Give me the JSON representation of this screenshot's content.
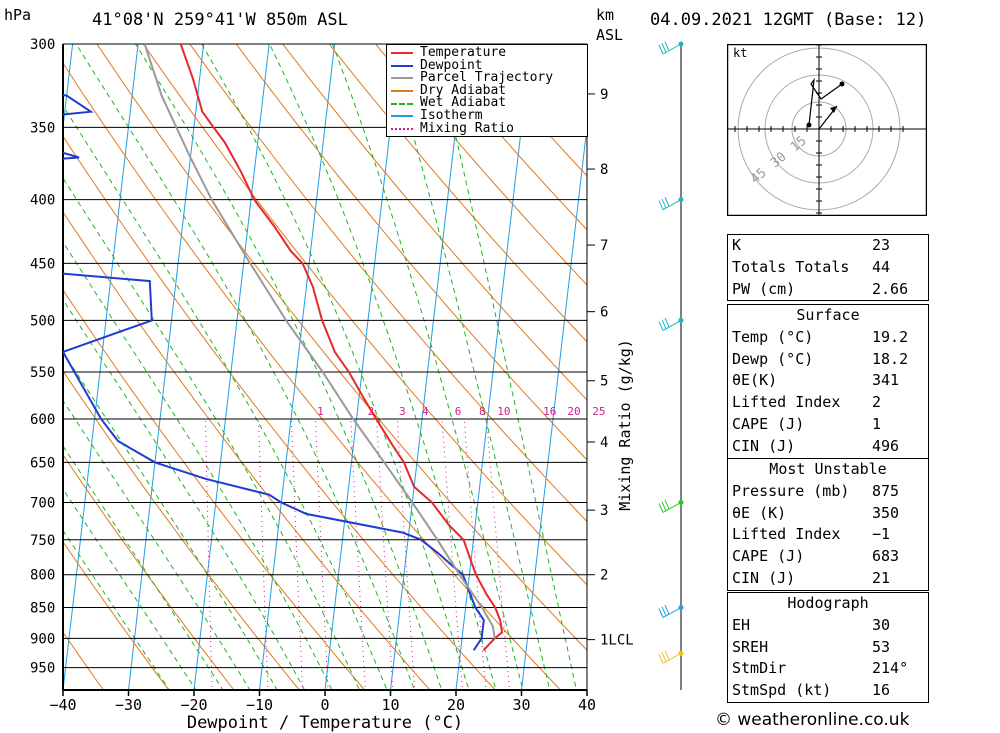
{
  "header": {
    "location": "41°08'N  259°41'W  850m  ASL",
    "datetime": "04.09.2021  12GMT  (Base: 12)",
    "pressure_unit": "hPa",
    "height_unit_line1": "km",
    "height_unit_line2": "ASL"
  },
  "footer": "© weatheronline.co.uk",
  "colors": {
    "temperature": "#e8282b",
    "dewpoint": "#1e3cd2",
    "parcel": "#9a9a9a",
    "dry_adiabat": "#e07a1e",
    "wet_adiabat": "#1fb41f",
    "isotherm": "#1e9ee8",
    "mixing_ratio": "#d01e8c",
    "wind": "#1ab6c6"
  },
  "legend": [
    {
      "key": "temperature",
      "label": "Temperature",
      "style": "solid"
    },
    {
      "key": "dewpoint",
      "label": "Dewpoint",
      "style": "solid"
    },
    {
      "key": "parcel",
      "label": "Parcel Trajectory",
      "style": "solid"
    },
    {
      "key": "dry_adiabat",
      "label": "Dry Adiabat",
      "style": "solid"
    },
    {
      "key": "wet_adiabat",
      "label": "Wet Adiabat",
      "style": "dashed"
    },
    {
      "key": "isotherm",
      "label": "Isotherm",
      "style": "solid"
    },
    {
      "key": "mixing_ratio",
      "label": "Mixing Ratio",
      "style": "dotted"
    }
  ],
  "chart_data": {
    "type": "line",
    "xlabel": "Dewpoint / Temperature (°C)",
    "xlim": [
      -40,
      40
    ],
    "x_ticks": [
      -40,
      -30,
      -20,
      -10,
      0,
      10,
      20,
      30,
      40
    ],
    "x_tick_labels": [
      "−40",
      "−30",
      "−20",
      "−10",
      "0",
      "10",
      "20",
      "30",
      "40"
    ],
    "pressure_levels": [
      300,
      350,
      400,
      450,
      500,
      550,
      600,
      650,
      700,
      750,
      800,
      850,
      900,
      950
    ],
    "height_ticks": [
      {
        "label": "9",
        "p": 329
      },
      {
        "label": "8",
        "p": 378
      },
      {
        "label": "7",
        "p": 435
      },
      {
        "label": "6",
        "p": 492
      },
      {
        "label": "5",
        "p": 559
      },
      {
        "label": "4",
        "p": 626
      },
      {
        "label": "3",
        "p": 710
      },
      {
        "label": "2",
        "p": 800
      },
      {
        "label": "1LCL",
        "p": 902
      }
    ],
    "mixing_ratio_axis_label": "Mixing Ratio (g/kg)",
    "mixing_ratio_labels": [
      {
        "label": "1",
        "t": -5.5
      },
      {
        "label": "2",
        "t": 2.2
      },
      {
        "label": "3",
        "t": 7.0
      },
      {
        "label": "4",
        "t": 10.5
      },
      {
        "label": "6",
        "t": 15.5
      },
      {
        "label": "8",
        "t": 19.2
      },
      {
        "label": "10",
        "t": 22.5
      },
      {
        "label": "16",
        "t": 29.5
      },
      {
        "label": "20",
        "t": 33.2
      },
      {
        "label": "25",
        "t": 37.0
      }
    ],
    "series": [
      {
        "name": "Temperature",
        "key": "temperature",
        "points": [
          [
            300,
            -33.5
          ],
          [
            320,
            -31
          ],
          [
            340,
            -29
          ],
          [
            350,
            -27
          ],
          [
            360,
            -25
          ],
          [
            380,
            -22
          ],
          [
            400,
            -19.5
          ],
          [
            420,
            -16
          ],
          [
            440,
            -13
          ],
          [
            450,
            -11
          ],
          [
            470,
            -9
          ],
          [
            500,
            -7
          ],
          [
            530,
            -4.5
          ],
          [
            550,
            -2
          ],
          [
            580,
            1
          ],
          [
            600,
            3
          ],
          [
            630,
            6
          ],
          [
            650,
            8
          ],
          [
            680,
            10
          ],
          [
            700,
            13
          ],
          [
            730,
            16
          ],
          [
            750,
            18.5
          ],
          [
            780,
            20
          ],
          [
            800,
            21
          ],
          [
            830,
            23
          ],
          [
            850,
            24.5
          ],
          [
            870,
            25.5
          ],
          [
            890,
            26
          ],
          [
            900,
            25
          ],
          [
            920,
            23.5
          ]
        ]
      },
      {
        "name": "Dewpoint",
        "key": "dewpoint",
        "points": [
          [
            300,
            -62
          ],
          [
            305,
            -55
          ],
          [
            325,
            -58
          ],
          [
            330,
            -50
          ],
          [
            340,
            -46
          ],
          [
            348,
            -65
          ],
          [
            370,
            -47
          ],
          [
            375,
            -63
          ],
          [
            395,
            -65
          ],
          [
            450,
            -64
          ],
          [
            455,
            -55
          ],
          [
            465,
            -34
          ],
          [
            500,
            -33
          ],
          [
            530,
            -46
          ],
          [
            600,
            -39
          ],
          [
            625,
            -36
          ],
          [
            650,
            -30
          ],
          [
            670,
            -22
          ],
          [
            690,
            -12
          ],
          [
            700,
            -10
          ],
          [
            715,
            -6
          ],
          [
            740,
            9
          ],
          [
            750,
            12
          ],
          [
            770,
            15
          ],
          [
            785,
            17
          ],
          [
            800,
            19
          ],
          [
            830,
            20.5
          ],
          [
            850,
            21.5
          ],
          [
            870,
            23
          ],
          [
            900,
            23
          ],
          [
            920,
            22
          ]
        ]
      },
      {
        "name": "Parcel Trajectory",
        "key": "parcel",
        "points": [
          [
            300,
            -39
          ],
          [
            330,
            -35.5
          ],
          [
            370,
            -30
          ],
          [
            400,
            -26
          ],
          [
            450,
            -19
          ],
          [
            500,
            -12.5
          ],
          [
            550,
            -6
          ],
          [
            600,
            -0.5
          ],
          [
            650,
            5
          ],
          [
            700,
            10
          ],
          [
            750,
            14.5
          ],
          [
            800,
            18.5
          ],
          [
            850,
            22.5
          ],
          [
            880,
            24.5
          ],
          [
            900,
            25
          ]
        ]
      }
    ]
  },
  "wind": {
    "barb_label": "wind barbs",
    "levels": [
      300,
      400,
      500,
      700,
      850,
      925
    ]
  },
  "hodograph": {
    "unit": "kt",
    "ring_labels": [
      "15",
      "30",
      "45"
    ]
  },
  "indices": [
    {
      "label": "K",
      "value": "23"
    },
    {
      "label": "Totals Totals",
      "value": "44"
    },
    {
      "label": "PW (cm)",
      "value": "2.66"
    }
  ],
  "surface": {
    "title": "Surface",
    "rows": [
      {
        "label": "Temp (°C)",
        "value": "19.2"
      },
      {
        "label": "Dewp (°C)",
        "value": "18.2"
      },
      {
        "label": "θE(K)",
        "value": "341"
      },
      {
        "label": "Lifted Index",
        "value": "2"
      },
      {
        "label": "CAPE (J)",
        "value": "1"
      },
      {
        "label": "CIN (J)",
        "value": "496"
      }
    ]
  },
  "most_unstable": {
    "title": "Most Unstable",
    "rows": [
      {
        "label": "Pressure (mb)",
        "value": "875"
      },
      {
        "label": "θE (K)",
        "value": "350"
      },
      {
        "label": "Lifted Index",
        "value": "−1"
      },
      {
        "label": "CAPE (J)",
        "value": "683"
      },
      {
        "label": "CIN (J)",
        "value": "21"
      }
    ]
  },
  "hodograph_stats": {
    "title": "Hodograph",
    "rows": [
      {
        "label": "EH",
        "value": "30"
      },
      {
        "label": "SREH",
        "value": "53"
      },
      {
        "label": "StmDir",
        "value": "214°"
      },
      {
        "label": "StmSpd (kt)",
        "value": "16"
      }
    ]
  }
}
